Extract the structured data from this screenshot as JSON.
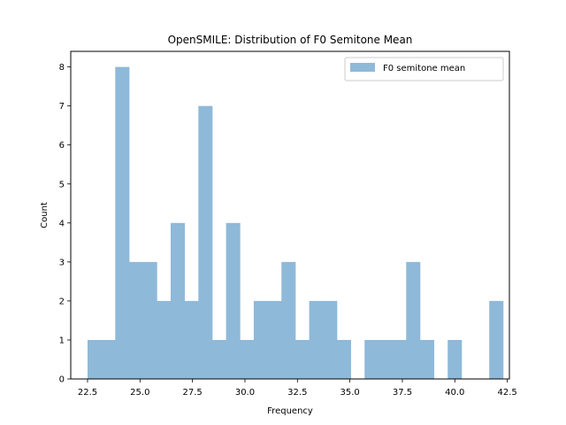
{
  "chart_data": {
    "type": "bar",
    "title": "OpenSMILE: Distribution of F0 Semitone Mean",
    "xlabel": "Frequency",
    "ylabel": "Count",
    "xlim": [
      21.7,
      42.6
    ],
    "ylim": [
      0,
      8.4
    ],
    "xticks": [
      22.5,
      25.0,
      27.5,
      30.0,
      32.5,
      35.0,
      37.5,
      40.0,
      42.5
    ],
    "xtick_labels": [
      "22.5",
      "25.0",
      "27.5",
      "30.0",
      "32.5",
      "35.0",
      "37.5",
      "40.0",
      "42.5"
    ],
    "yticks": [
      0,
      1,
      2,
      3,
      4,
      5,
      6,
      7,
      8
    ],
    "ytick_labels": [
      "0",
      "1",
      "2",
      "3",
      "4",
      "5",
      "6",
      "7",
      "8"
    ],
    "bin_start": 22.5,
    "bin_width": 0.66,
    "series": [
      {
        "name": "F0 semitone mean",
        "values": [
          1,
          1,
          8,
          3,
          3,
          2,
          4,
          2,
          7,
          1,
          4,
          1,
          2,
          2,
          3,
          1,
          2,
          2,
          1,
          0,
          1,
          1,
          1,
          3,
          1,
          0,
          1,
          0,
          0,
          2
        ]
      }
    ],
    "legend": "top-right",
    "color": "#8fb9d9",
    "grid": false
  }
}
